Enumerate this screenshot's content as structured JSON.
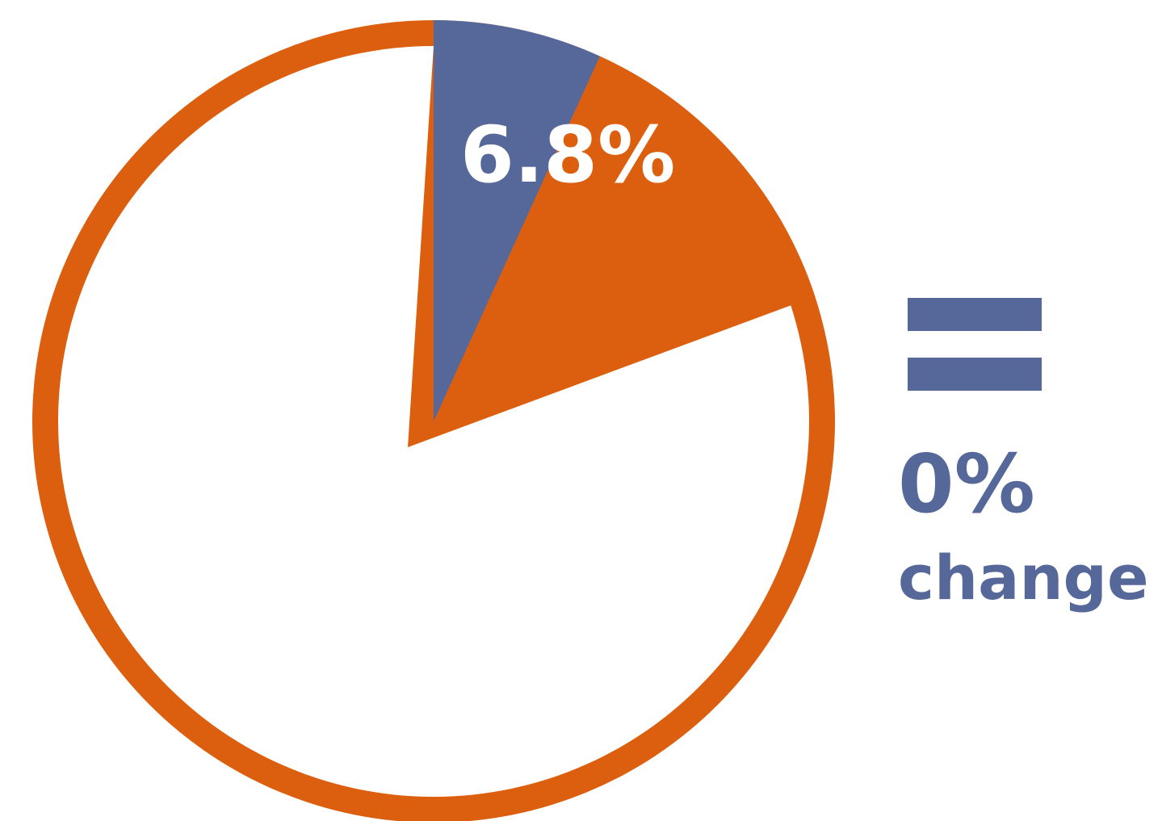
{
  "chart_data": {
    "type": "pie",
    "slices": [
      {
        "value": 6.8,
        "label": "6.8%",
        "color": "#56689a"
      },
      {
        "value": 13.2,
        "label": "",
        "color": "#db5f0e"
      },
      {
        "value": 80.0,
        "label": "",
        "color": "#ffffff"
      }
    ],
    "highlighted_wedge_label": "6.8%",
    "outline_color": "#db5f0e"
  },
  "indicator": {
    "symbol": "equals-icon",
    "value": "0%",
    "label": "change",
    "color": "#56689a"
  }
}
